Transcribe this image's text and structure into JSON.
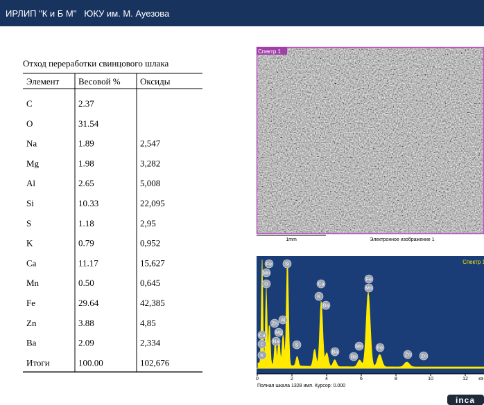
{
  "header": {
    "title": "ИРЛИП \"К и Б М\"   ЮКУ им. М. Ауезова"
  },
  "table": {
    "title": "Отход переработки свинцового шлака",
    "columns": [
      "Элемент",
      "Весовой %",
      "Оксиды"
    ],
    "rows": [
      [
        "C",
        "2.37"
      ],
      [
        "O",
        "31.54"
      ],
      [
        "Na",
        "1.89",
        "2,547"
      ],
      [
        "Mg",
        "1.98",
        "3,282"
      ],
      [
        "Al",
        "2.65",
        "5,008"
      ],
      [
        "Si",
        "10.33",
        "22,095"
      ],
      [
        "S",
        "1.18",
        "2,95"
      ],
      [
        "K",
        "0.79",
        "0,952"
      ],
      [
        "Ca",
        "11.17",
        "15,627"
      ],
      [
        "Mn",
        "0.50",
        "0,645"
      ],
      [
        "Fe",
        "29.64",
        "42,385"
      ],
      [
        "Zn",
        "3.88",
        "4,85"
      ],
      [
        "Ba",
        "2.09",
        "2,334"
      ],
      [
        "Итоги",
        "100.00",
        "102,676"
      ]
    ]
  },
  "sem": {
    "label": "Спектр 1",
    "scale": "1mm",
    "caption": "Электронное изображение 1"
  },
  "spectrum": {
    "label": "Спектр 1",
    "ticks": [
      0,
      2,
      4,
      6,
      8,
      10,
      12
    ],
    "unit": "кэ",
    "footer": "Полная шкала 1328 имп. Курсор: 0.000",
    "peaks": [
      "Fe",
      "Mn",
      "O",
      "Si",
      "Ca",
      "K",
      "Ba",
      "Zn",
      "Al",
      "Mg",
      "Na",
      "Ca",
      "C",
      "K",
      "S",
      "Ba",
      "Ba",
      "Mn",
      "Fe",
      "Fe",
      "Mn",
      "Zn",
      "Zn"
    ]
  },
  "logo": "inca"
}
